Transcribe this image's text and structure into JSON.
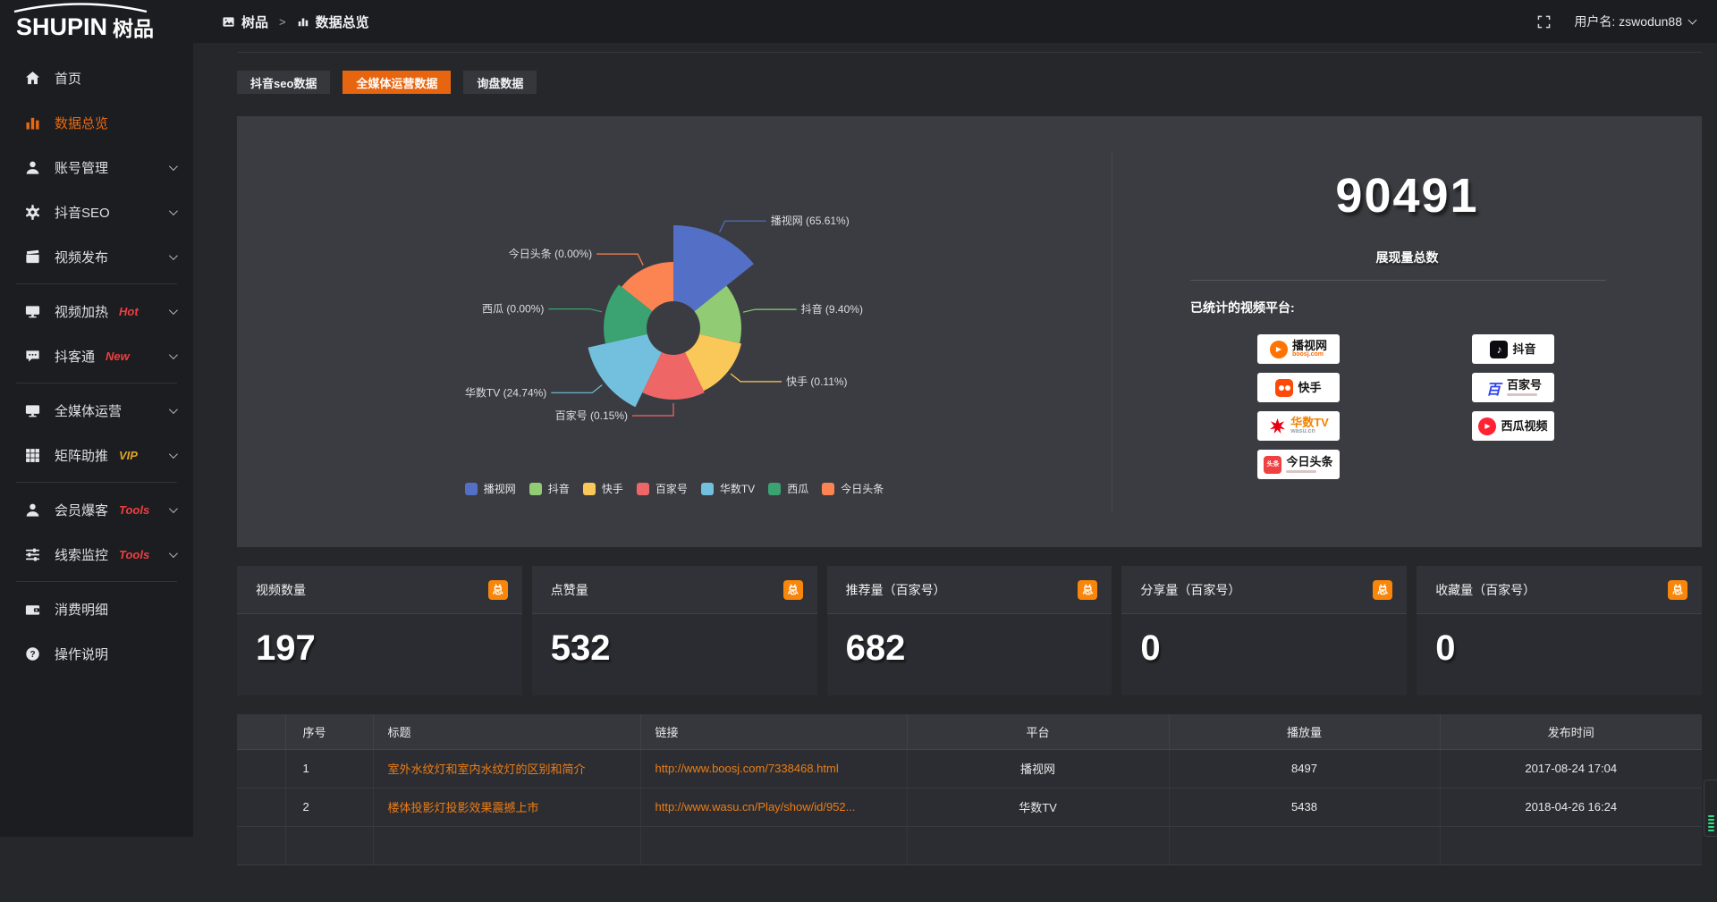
{
  "brand": {
    "logo_text": "SHUPIN",
    "logo_cn": "树品"
  },
  "topbar": {
    "breadcrumb": [
      {
        "label": "树品"
      },
      {
        "label": "数据总览"
      }
    ],
    "username": "用户名: zswodun88"
  },
  "sidebar": {
    "items": [
      {
        "label": "首页",
        "icon": "home"
      },
      {
        "label": "数据总览",
        "icon": "chart",
        "active": true
      },
      {
        "label": "账号管理",
        "icon": "user",
        "chevron": true
      },
      {
        "label": "抖音SEO",
        "icon": "gear",
        "chevron": true
      },
      {
        "label": "视频发布",
        "icon": "video",
        "chevron": true
      },
      {
        "divider": true
      },
      {
        "label": "视频加热",
        "icon": "monitor",
        "badge": "Hot",
        "badge_color": "#f03e3e",
        "chevron": true
      },
      {
        "label": "抖客通",
        "icon": "chat",
        "badge": "New",
        "badge_color": "#f03e3e",
        "chevron": true
      },
      {
        "divider": true
      },
      {
        "label": "全媒体运营",
        "icon": "screen",
        "chevron": true
      },
      {
        "label": "矩阵助推",
        "icon": "grid",
        "badge": "VIP",
        "badge_color": "#dfa524",
        "chevron": true
      },
      {
        "divider": true
      },
      {
        "label": "会员爆客",
        "icon": "member",
        "badge": "Tools",
        "badge_color": "#f03e3e",
        "chevron": true
      },
      {
        "label": "线索监控",
        "icon": "sliders",
        "badge": "Tools",
        "badge_color": "#f03e3e",
        "chevron": true
      },
      {
        "divider": true
      },
      {
        "label": "消费明细",
        "icon": "wallet"
      },
      {
        "label": "操作说明",
        "icon": "question"
      }
    ]
  },
  "tabs": [
    {
      "label": "抖音seo数据"
    },
    {
      "label": "全媒体运营数据",
      "active": true
    },
    {
      "label": "询盘数据"
    }
  ],
  "chart_data": {
    "type": "pie",
    "subtype": "nightingale-rose",
    "series_name": "展现量",
    "equal_angles": true,
    "start_angle_deg": 0,
    "inner_radius_px": 30,
    "legend_position": "bottom",
    "items": [
      {
        "name": "播视网",
        "percent": 65.61,
        "label": "播视网 (65.61%)",
        "color": "#5470c6",
        "radius_px": 115
      },
      {
        "name": "抖音",
        "percent": 9.4,
        "label": "抖音 (9.40%)",
        "color": "#91cc75",
        "radius_px": 76
      },
      {
        "name": "快手",
        "percent": 0.11,
        "label": "快手 (0.11%)",
        "color": "#fac858",
        "radius_px": 78
      },
      {
        "name": "百家号",
        "percent": 0.15,
        "label": "百家号 (0.15%)",
        "color": "#ee6666",
        "radius_px": 80
      },
      {
        "name": "华数TV",
        "percent": 24.74,
        "label": "华数TV (24.74%)",
        "color": "#73c0de",
        "radius_px": 98
      },
      {
        "name": "西瓜",
        "percent": 0.0,
        "label": "西瓜 (0.00%)",
        "color": "#3ba272",
        "radius_px": 78
      },
      {
        "name": "今日头条",
        "percent": 0.0,
        "label": "今日头条 (0.00%)",
        "color": "#fc8452",
        "radius_px": 74
      }
    ]
  },
  "summary": {
    "total_value": "90491",
    "total_label": "展现量总数",
    "platforms_title": "已统计的视频平台:",
    "platform_columns": [
      [
        {
          "icon": "boosj",
          "label": "播视网",
          "sub": "boosj.com",
          "sub_color": "#ff6a00"
        },
        {
          "icon": "kuaishou",
          "label": "快手"
        },
        {
          "icon": "wasu",
          "label": "华数TV",
          "label_color": "#f08300",
          "sub": "wasu.cn",
          "sub_color": "#9aa0a6"
        },
        {
          "icon": "toutiao",
          "label": "今日头条",
          "subbar": true
        }
      ],
      [
        {
          "icon": "douyin",
          "label": "抖音"
        },
        {
          "icon": "baijiahao",
          "label": "百家号",
          "subbar": true
        },
        {
          "icon": "xigua",
          "label": "西瓜视频"
        }
      ]
    ]
  },
  "stat_cards": [
    {
      "title": "视频数量",
      "badge": "总",
      "value": "197"
    },
    {
      "title": "点赞量",
      "badge": "总",
      "value": "532"
    },
    {
      "title": "推荐量（百家号）",
      "badge": "总",
      "value": "682"
    },
    {
      "title": "分享量（百家号）",
      "badge": "总",
      "value": "0"
    },
    {
      "title": "收藏量（百家号）",
      "badge": "总",
      "value": "0"
    }
  ],
  "table": {
    "headers": [
      "序号",
      "标题",
      "链接",
      "平台",
      "播放量",
      "发布时间"
    ],
    "rows": [
      {
        "index": "1",
        "title": "室外水纹灯和室内水纹灯的区别和简介",
        "link": "http://www.boosj.com/7338468.html",
        "platform": "播视网",
        "views": "8497",
        "time": "2017-08-24 17:04"
      },
      {
        "index": "2",
        "title": "楼体投影灯投影效果震撼上市",
        "link": "http://www.wasu.cn/Play/show/id/952...",
        "platform": "华数TV",
        "views": "5438",
        "time": "2018-04-26 16:24"
      }
    ]
  }
}
